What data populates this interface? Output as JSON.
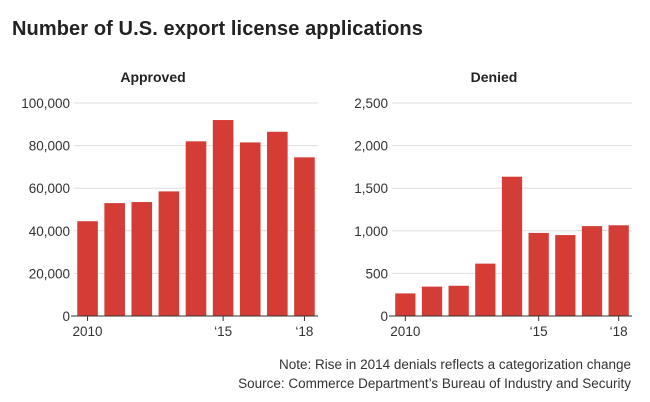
{
  "title": "Number of U.S. export license applications",
  "note": "Note: Rise in 2014 denials reflects a categorization change",
  "source": "Source: Commerce Department’s Bureau of Industry and Security",
  "colors": {
    "bar": "#d33d36",
    "grid": "#dddddd",
    "axis": "#333333"
  },
  "chart_data": [
    {
      "type": "bar",
      "title": "Approved",
      "categories": [
        "2010",
        "2011",
        "2012",
        "2013",
        "2014",
        "2015",
        "2016",
        "2017",
        "2018"
      ],
      "x_tick_labels": [
        "2010",
        "",
        "",
        "",
        "",
        "‘15",
        "",
        "",
        "‘18"
      ],
      "values": [
        44500,
        53000,
        53500,
        58500,
        82000,
        92000,
        81500,
        86500,
        74500
      ],
      "yticks": [
        0,
        20000,
        40000,
        60000,
        80000,
        100000
      ],
      "ytick_labels": [
        "0",
        "20,000",
        "40,000",
        "60,000",
        "80,000",
        "100,000"
      ],
      "ylim": [
        0,
        100000
      ],
      "xlabel": "",
      "ylabel": "",
      "grid": true
    },
    {
      "type": "bar",
      "title": "Denied",
      "categories": [
        "2010",
        "2011",
        "2012",
        "2013",
        "2014",
        "2015",
        "2016",
        "2017",
        "2018"
      ],
      "x_tick_labels": [
        "2010",
        "",
        "",
        "",
        "",
        "‘15",
        "",
        "",
        "‘18"
      ],
      "values": [
        265,
        345,
        355,
        615,
        1635,
        975,
        950,
        1055,
        1065
      ],
      "yticks": [
        0,
        500,
        1000,
        1500,
        2000,
        2500
      ],
      "ytick_labels": [
        "0",
        "500",
        "1,000",
        "1,500",
        "2,000",
        "2,500"
      ],
      "ylim": [
        0,
        2500
      ],
      "xlabel": "",
      "ylabel": "",
      "grid": true
    }
  ]
}
